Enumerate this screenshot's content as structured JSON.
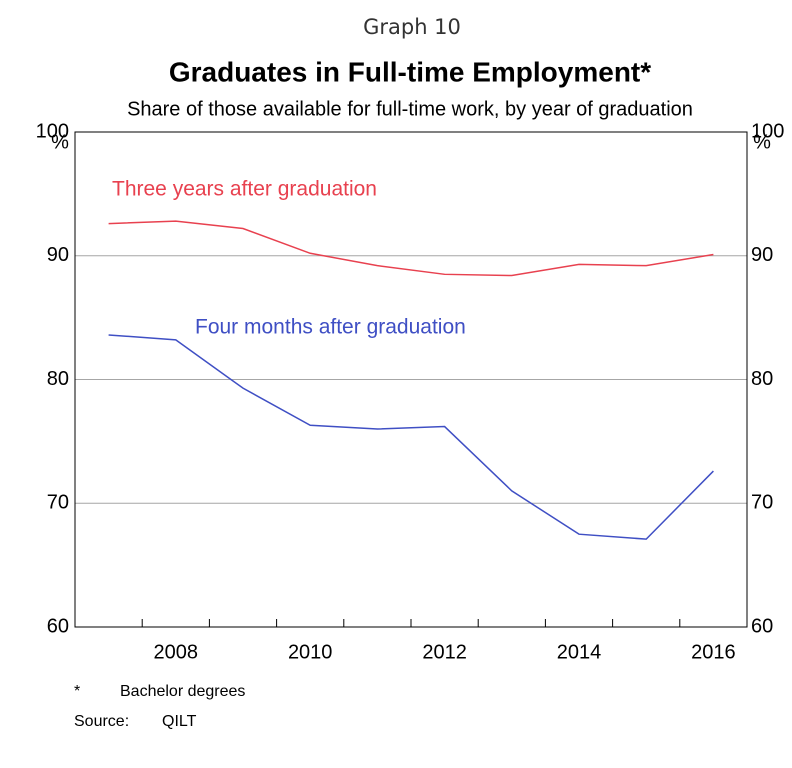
{
  "chart_data": {
    "type": "line",
    "header": "Graph 10",
    "title": "Graduates in Full-time Employment*",
    "subtitle": "Share of those available for full-time work, by year of graduation",
    "y_unit": "%",
    "x": [
      2007,
      2008,
      2009,
      2010,
      2011,
      2012,
      2013,
      2014,
      2015,
      2016
    ],
    "xlim": [
      2006.5,
      2016.5
    ],
    "xticks": [
      2008,
      2010,
      2012,
      2014,
      2016
    ],
    "ylim": [
      60,
      100
    ],
    "yticks": [
      60,
      70,
      80,
      90,
      100
    ],
    "grid": true,
    "series": [
      {
        "name": "Three years after graduation",
        "color": "#e8414f",
        "values": [
          92.6,
          92.8,
          92.2,
          90.2,
          89.2,
          88.5,
          88.4,
          89.3,
          89.2,
          90.1
        ]
      },
      {
        "name": "Four months after graduation",
        "color": "#3f4fc4",
        "values": [
          83.6,
          83.2,
          79.3,
          76.3,
          76.0,
          76.2,
          71.0,
          67.5,
          67.1,
          72.6
        ]
      }
    ],
    "footnote_marker": "*",
    "footnote": "Bachelor degrees",
    "source_label": "Source:",
    "source": "QILT"
  }
}
